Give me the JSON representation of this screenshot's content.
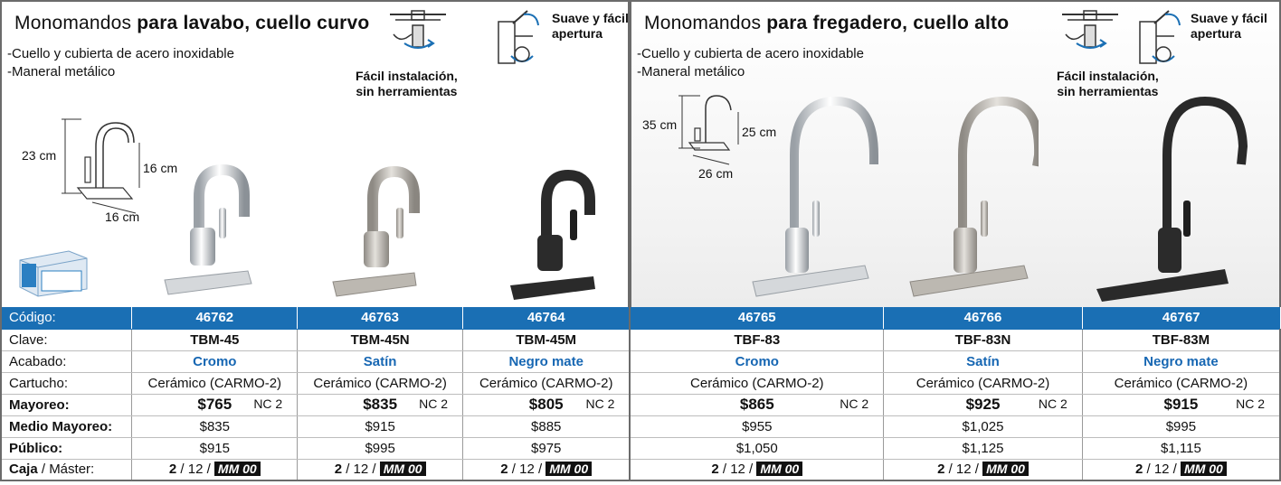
{
  "left_panel": {
    "title_regular": "Monomandos ",
    "title_bold": "para lavabo, cuello curvo",
    "bullets": [
      "-Cuello y cubierta de acero inoxidable",
      "-Maneral metálico"
    ],
    "install_line1": "Fácil instalación,",
    "install_line2": "sin herramientas",
    "suave_line1": "Suave y fácil",
    "suave_line2": "apertura",
    "dim_height": "23 cm",
    "dim_spout": "16 cm",
    "dim_base": "16 cm"
  },
  "right_panel": {
    "title_regular": "Monomandos ",
    "title_bold": "para fregadero, cuello alto",
    "bullets": [
      "-Cuello y cubierta de acero inoxidable",
      "-Maneral metálico"
    ],
    "install_line1": "Fácil instalación,",
    "install_line2": "sin herramientas",
    "suave_line1": "Suave y fácil",
    "suave_line2": "apertura",
    "dim_height": "35 cm",
    "dim_spout": "25 cm",
    "dim_base": "26 cm"
  },
  "colors": {
    "header_blue": "#1a6fb4",
    "finish_blue": "#1767b3",
    "chrome": "#c9ccd0",
    "satin": "#b9b5ae",
    "black": "#2a2a2a"
  },
  "table": {
    "labels": {
      "codigo": "Código:",
      "clave": "Clave:",
      "acabado": "Acabado:",
      "cartucho": "Cartucho:",
      "mayoreo": "Mayoreo:",
      "medio": "Medio Mayoreo:",
      "publico": "Público:",
      "caja": "Caja",
      "master": " / Máster:"
    },
    "products": [
      {
        "codigo": "46762",
        "clave": "TBM-45",
        "acabado": "Cromo",
        "cartucho": "Cerámico (CARMO-2)",
        "mayoreo": "$765",
        "nc": "NC 2",
        "medio": "$835",
        "publico": "$915",
        "caja": "2",
        "master": " / 12 / ",
        "mm": "MM 00"
      },
      {
        "codigo": "46763",
        "clave": "TBM-45N",
        "acabado": "Satín",
        "cartucho": "Cerámico (CARMO-2)",
        "mayoreo": "$835",
        "nc": "NC 2",
        "medio": "$915",
        "publico": "$995",
        "caja": "2",
        "master": " / 12 / ",
        "mm": "MM 00"
      },
      {
        "codigo": "46764",
        "clave": "TBM-45M",
        "acabado": "Negro mate",
        "cartucho": "Cerámico (CARMO-2)",
        "mayoreo": "$805",
        "nc": "NC 2",
        "medio": "$885",
        "publico": "$975",
        "caja": "2",
        "master": " / 12 / ",
        "mm": "MM 00"
      },
      {
        "codigo": "46765",
        "clave": "TBF-83",
        "acabado": "Cromo",
        "cartucho": "Cerámico (CARMO-2)",
        "mayoreo": "$865",
        "nc": "NC 2",
        "medio": "$955",
        "publico": "$1,050",
        "caja": "2",
        "master": " / 12 / ",
        "mm": "MM 00"
      },
      {
        "codigo": "46766",
        "clave": "TBF-83N",
        "acabado": "Satín",
        "cartucho": "Cerámico (CARMO-2)",
        "mayoreo": "$925",
        "nc": "NC 2",
        "medio": "$1,025",
        "publico": "$1,125",
        "caja": "2",
        "master": " / 12 / ",
        "mm": "MM 00"
      },
      {
        "codigo": "46767",
        "clave": "TBF-83M",
        "acabado": "Negro mate",
        "cartucho": "Cerámico (CARMO-2)",
        "mayoreo": "$915",
        "nc": "NC 2",
        "medio": "$995",
        "publico": "$1,115",
        "caja": "2",
        "master": " / 12 / ",
        "mm": "MM 00"
      }
    ]
  }
}
